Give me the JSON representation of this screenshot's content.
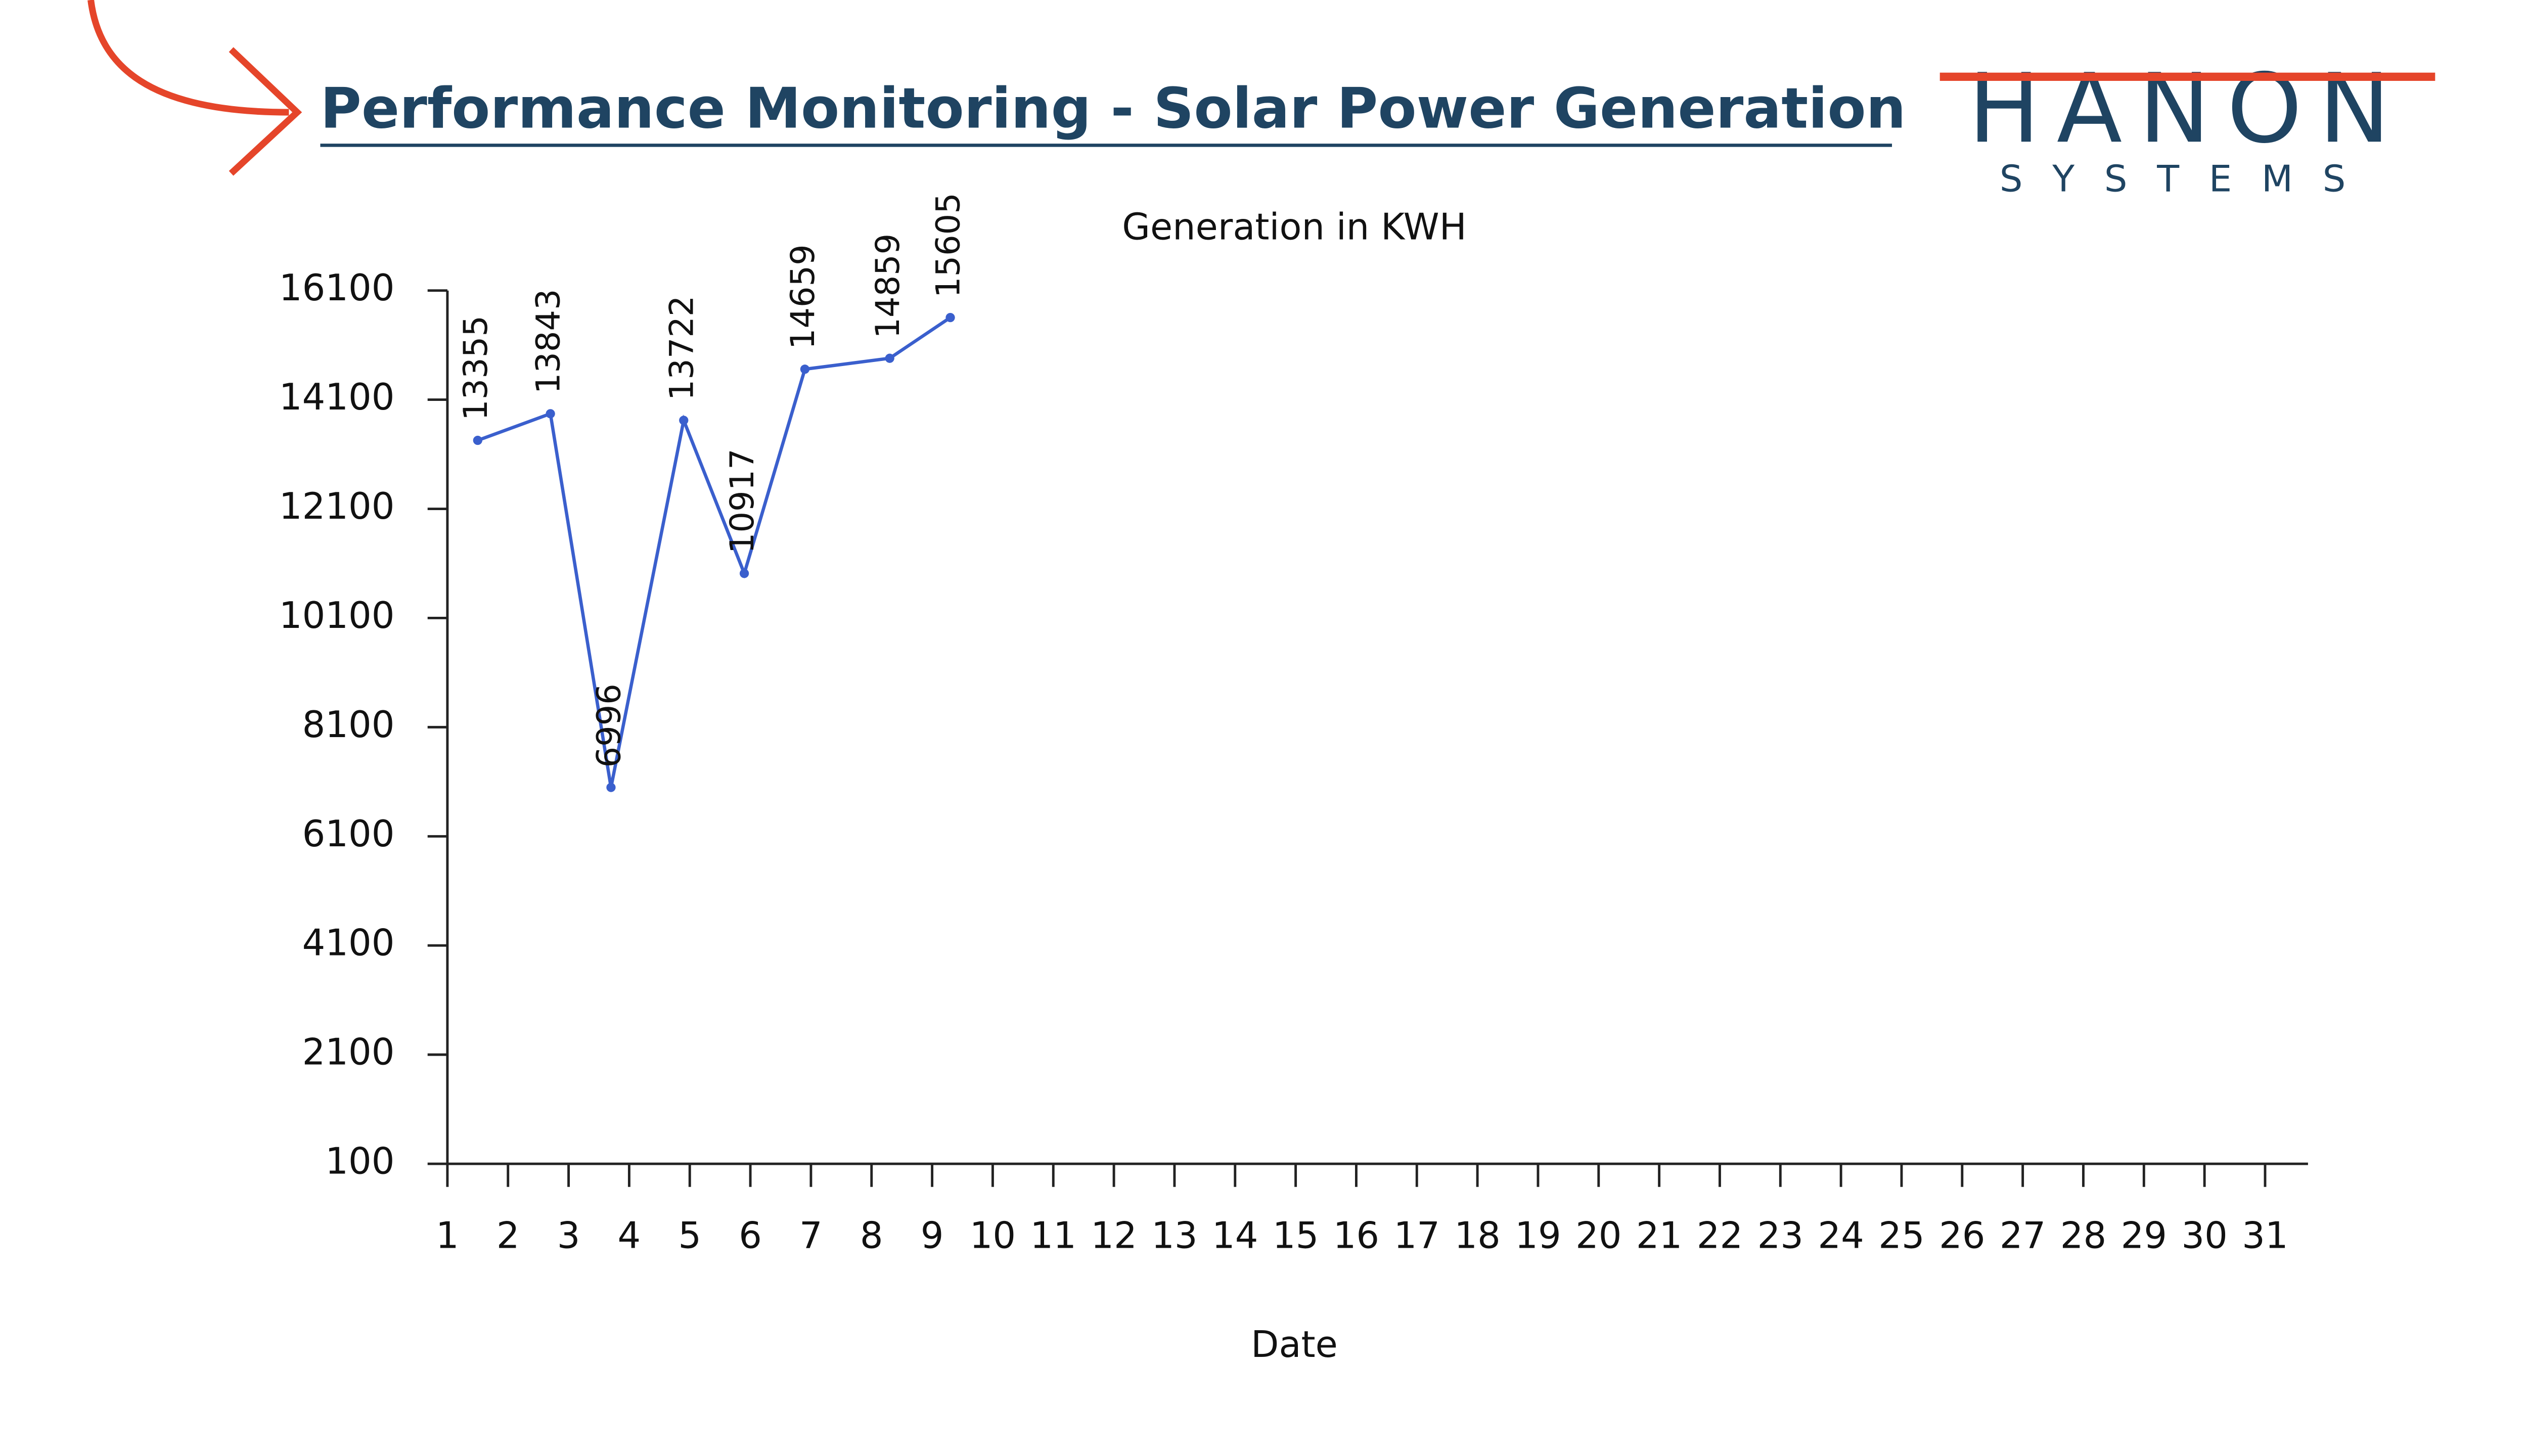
{
  "logo": {
    "brand": "HANON",
    "tagline": "SYSTEMS"
  },
  "chart_data": {
    "type": "line",
    "title": "Performance Monitoring - Solar Power Generation",
    "subtitle": "Generation in KWH",
    "x_label": "Date",
    "x": [
      1.5,
      2.7,
      3.7,
      4.9,
      5.9,
      6.9,
      8.3,
      9.3
    ],
    "series": [
      {
        "name": "Generation",
        "color": "#3a5fcd",
        "values": [
          13355,
          13843,
          6996,
          13722,
          10917,
          14659,
          14859,
          15605
        ]
      }
    ],
    "xlim": [
      1,
      31
    ],
    "xticks": [
      1,
      2,
      3,
      4,
      5,
      6,
      7,
      8,
      9,
      10,
      11,
      12,
      13,
      14,
      15,
      16,
      17,
      18,
      19,
      20,
      21,
      22,
      23,
      24,
      25,
      26,
      27,
      28,
      29,
      30,
      31
    ],
    "ylim": [
      100,
      16100
    ],
    "yticks": [
      100,
      2100,
      4100,
      6100,
      8100,
      10100,
      12100,
      14100,
      16100
    ],
    "data_labels": true
  }
}
